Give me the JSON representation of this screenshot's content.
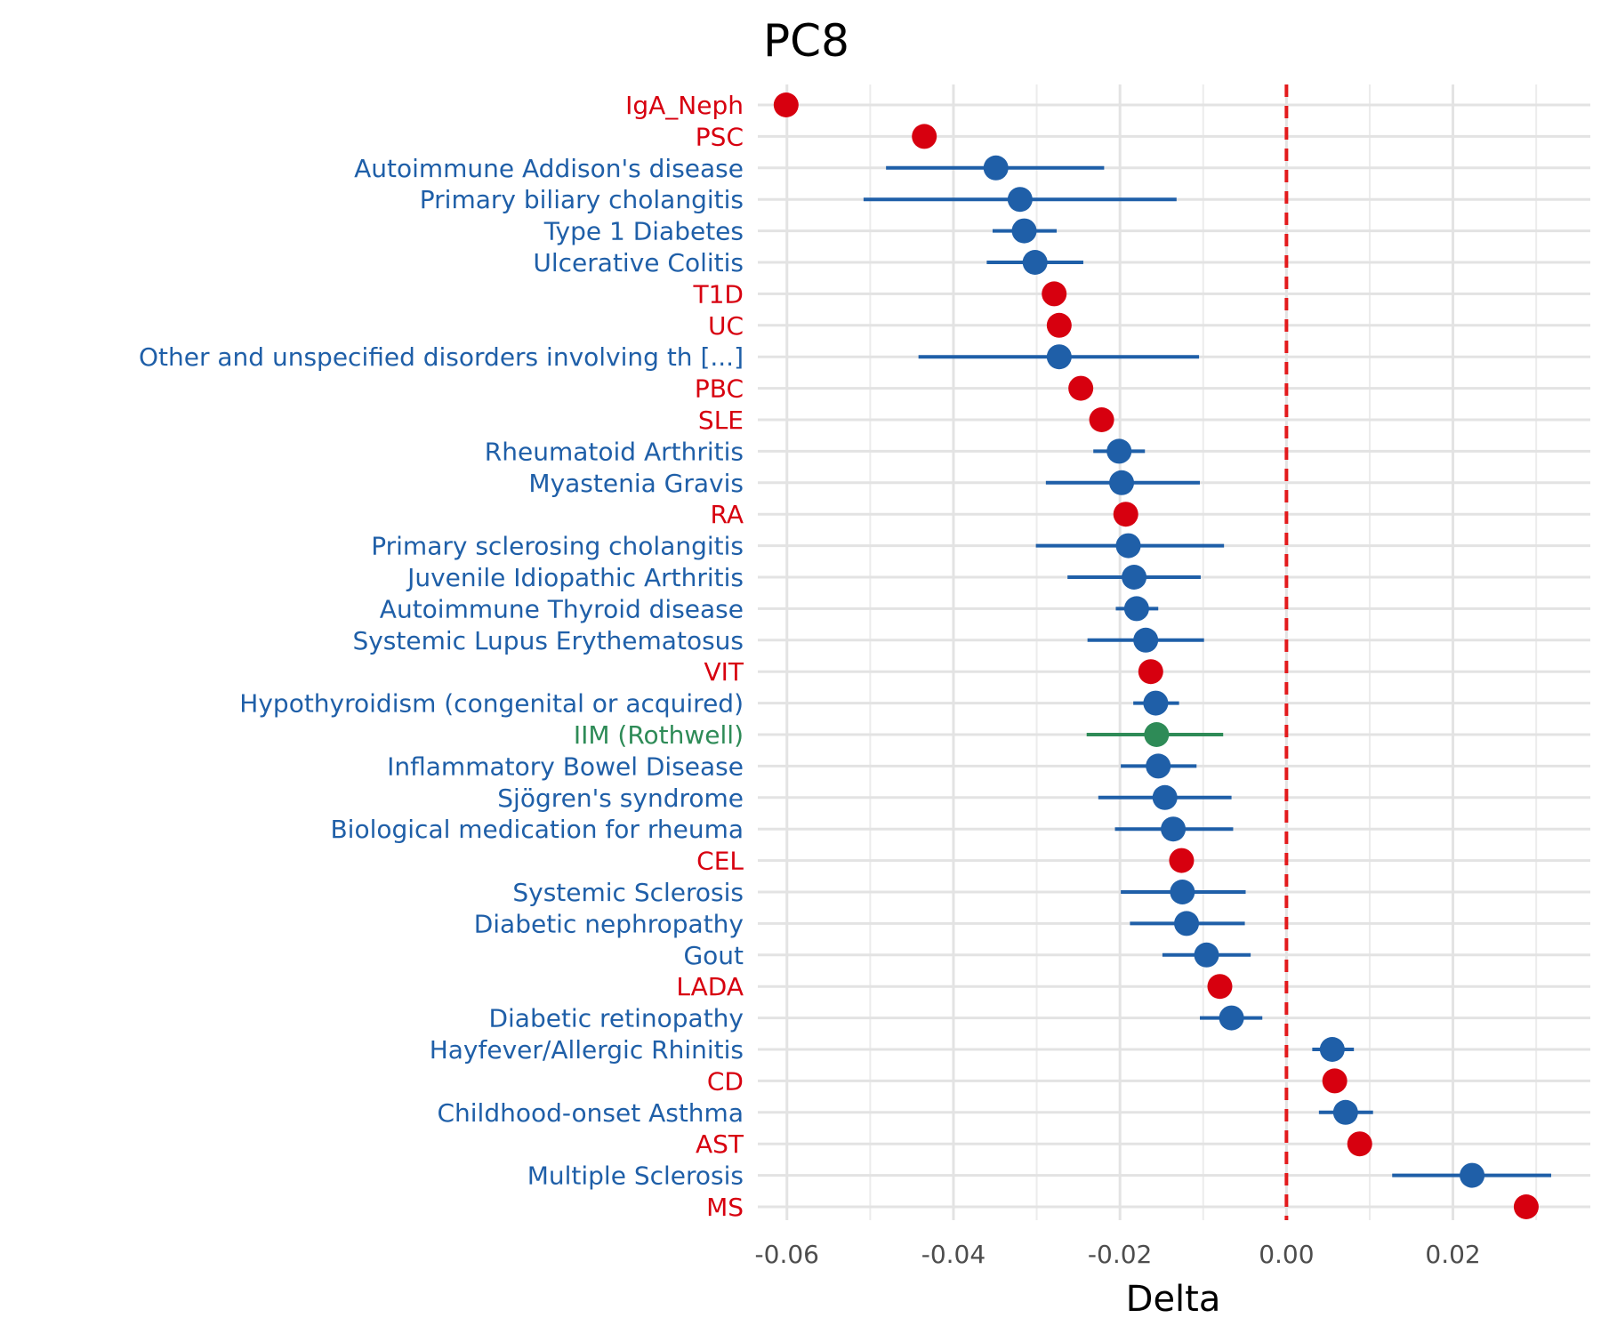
{
  "chart_data": {
    "type": "scatter",
    "title": "PC8",
    "xlabel": "Delta",
    "ylabel": "",
    "xlim": [
      -0.0635,
      0.0365
    ],
    "x_ticks": [
      -0.06,
      -0.04,
      -0.02,
      0.0,
      0.02
    ],
    "x_tick_labels": [
      "-0.06",
      "-0.04",
      "-0.02",
      "0.00",
      "0.02"
    ],
    "reference_line": {
      "x": 0.0,
      "style": "dashed",
      "color": "#e31a1c"
    },
    "grid": true,
    "legend": "none",
    "colors": {
      "red": "#d7000f",
      "blue": "#1f5fa8",
      "green": "#2e8b57"
    },
    "points": [
      {
        "label": "IgA_Neph",
        "value": -0.0601,
        "ci": null,
        "color": "red"
      },
      {
        "label": "PSC",
        "value": -0.0435,
        "ci": null,
        "color": "red"
      },
      {
        "label": "Autoimmune Addison's disease",
        "value": -0.0349,
        "ci": [
          -0.0481,
          -0.0219
        ],
        "color": "blue"
      },
      {
        "label": "Primary biliary cholangitis",
        "value": -0.032,
        "ci": [
          -0.0508,
          -0.0132
        ],
        "color": "blue"
      },
      {
        "label": "Type 1 Diabetes",
        "value": -0.0315,
        "ci": [
          -0.0353,
          -0.0276
        ],
        "color": "blue"
      },
      {
        "label": "Ulcerative Colitis",
        "value": -0.0302,
        "ci": [
          -0.036,
          -0.0244
        ],
        "color": "blue"
      },
      {
        "label": "T1D",
        "value": -0.0279,
        "ci": null,
        "color": "red"
      },
      {
        "label": "UC",
        "value": -0.0273,
        "ci": null,
        "color": "red"
      },
      {
        "label": "Other and unspecified disorders involving th [...]",
        "value": -0.0273,
        "ci": [
          -0.0442,
          -0.0105
        ],
        "color": "blue"
      },
      {
        "label": "PBC",
        "value": -0.0247,
        "ci": null,
        "color": "red"
      },
      {
        "label": "SLE",
        "value": -0.0222,
        "ci": null,
        "color": "red"
      },
      {
        "label": "Rheumatoid Arthritis",
        "value": -0.0201,
        "ci": [
          -0.0232,
          -0.017
        ],
        "color": "blue"
      },
      {
        "label": "Myastenia Gravis",
        "value": -0.0198,
        "ci": [
          -0.0289,
          -0.0104
        ],
        "color": "blue"
      },
      {
        "label": "RA",
        "value": -0.0193,
        "ci": null,
        "color": "red"
      },
      {
        "label": "Primary sclerosing cholangitis",
        "value": -0.019,
        "ci": [
          -0.0301,
          -0.0075
        ],
        "color": "blue"
      },
      {
        "label": "Juvenile Idiopathic Arthritis",
        "value": -0.0183,
        "ci": [
          -0.0263,
          -0.0103
        ],
        "color": "blue"
      },
      {
        "label": "Autoimmune Thyroid disease",
        "value": -0.018,
        "ci": [
          -0.0205,
          -0.0154
        ],
        "color": "blue"
      },
      {
        "label": "Systemic Lupus Erythematosus",
        "value": -0.0169,
        "ci": [
          -0.0239,
          -0.0099
        ],
        "color": "blue"
      },
      {
        "label": "VIT",
        "value": -0.0163,
        "ci": null,
        "color": "red"
      },
      {
        "label": "Hypothyroidism (congenital or acquired)",
        "value": -0.0157,
        "ci": [
          -0.0184,
          -0.0129
        ],
        "color": "blue"
      },
      {
        "label": "IIM (Rothwell)",
        "value": -0.0156,
        "ci": [
          -0.024,
          -0.0076
        ],
        "color": "green"
      },
      {
        "label": "Inflammatory Bowel Disease",
        "value": -0.0154,
        "ci": [
          -0.0199,
          -0.0108
        ],
        "color": "blue"
      },
      {
        "label": "Sjögren's syndrome",
        "value": -0.0146,
        "ci": [
          -0.0226,
          -0.0066
        ],
        "color": "blue"
      },
      {
        "label": "Biological medication for rheuma",
        "value": -0.0136,
        "ci": [
          -0.0206,
          -0.0064
        ],
        "color": "blue"
      },
      {
        "label": "CEL",
        "value": -0.0126,
        "ci": null,
        "color": "red"
      },
      {
        "label": "Systemic Sclerosis",
        "value": -0.0125,
        "ci": [
          -0.0199,
          -0.0049
        ],
        "color": "blue"
      },
      {
        "label": "Diabetic nephropathy",
        "value": -0.012,
        "ci": [
          -0.0188,
          -0.005
        ],
        "color": "blue"
      },
      {
        "label": "Gout",
        "value": -0.0096,
        "ci": [
          -0.0149,
          -0.0043
        ],
        "color": "blue"
      },
      {
        "label": "LADA",
        "value": -0.008,
        "ci": null,
        "color": "red"
      },
      {
        "label": "Diabetic retinopathy",
        "value": -0.0066,
        "ci": [
          -0.0104,
          -0.0029
        ],
        "color": "blue"
      },
      {
        "label": "Hayfever/Allergic Rhinitis",
        "value": 0.0055,
        "ci": [
          0.0031,
          0.0081
        ],
        "color": "blue"
      },
      {
        "label": "CD",
        "value": 0.0058,
        "ci": null,
        "color": "red"
      },
      {
        "label": "Childhood-onset Asthma",
        "value": 0.0071,
        "ci": [
          0.0039,
          0.0104
        ],
        "color": "blue"
      },
      {
        "label": "AST",
        "value": 0.0088,
        "ci": null,
        "color": "red"
      },
      {
        "label": "Multiple Sclerosis",
        "value": 0.0223,
        "ci": [
          0.0127,
          0.0318
        ],
        "color": "blue"
      },
      {
        "label": "MS",
        "value": 0.0288,
        "ci": null,
        "color": "red"
      }
    ]
  }
}
